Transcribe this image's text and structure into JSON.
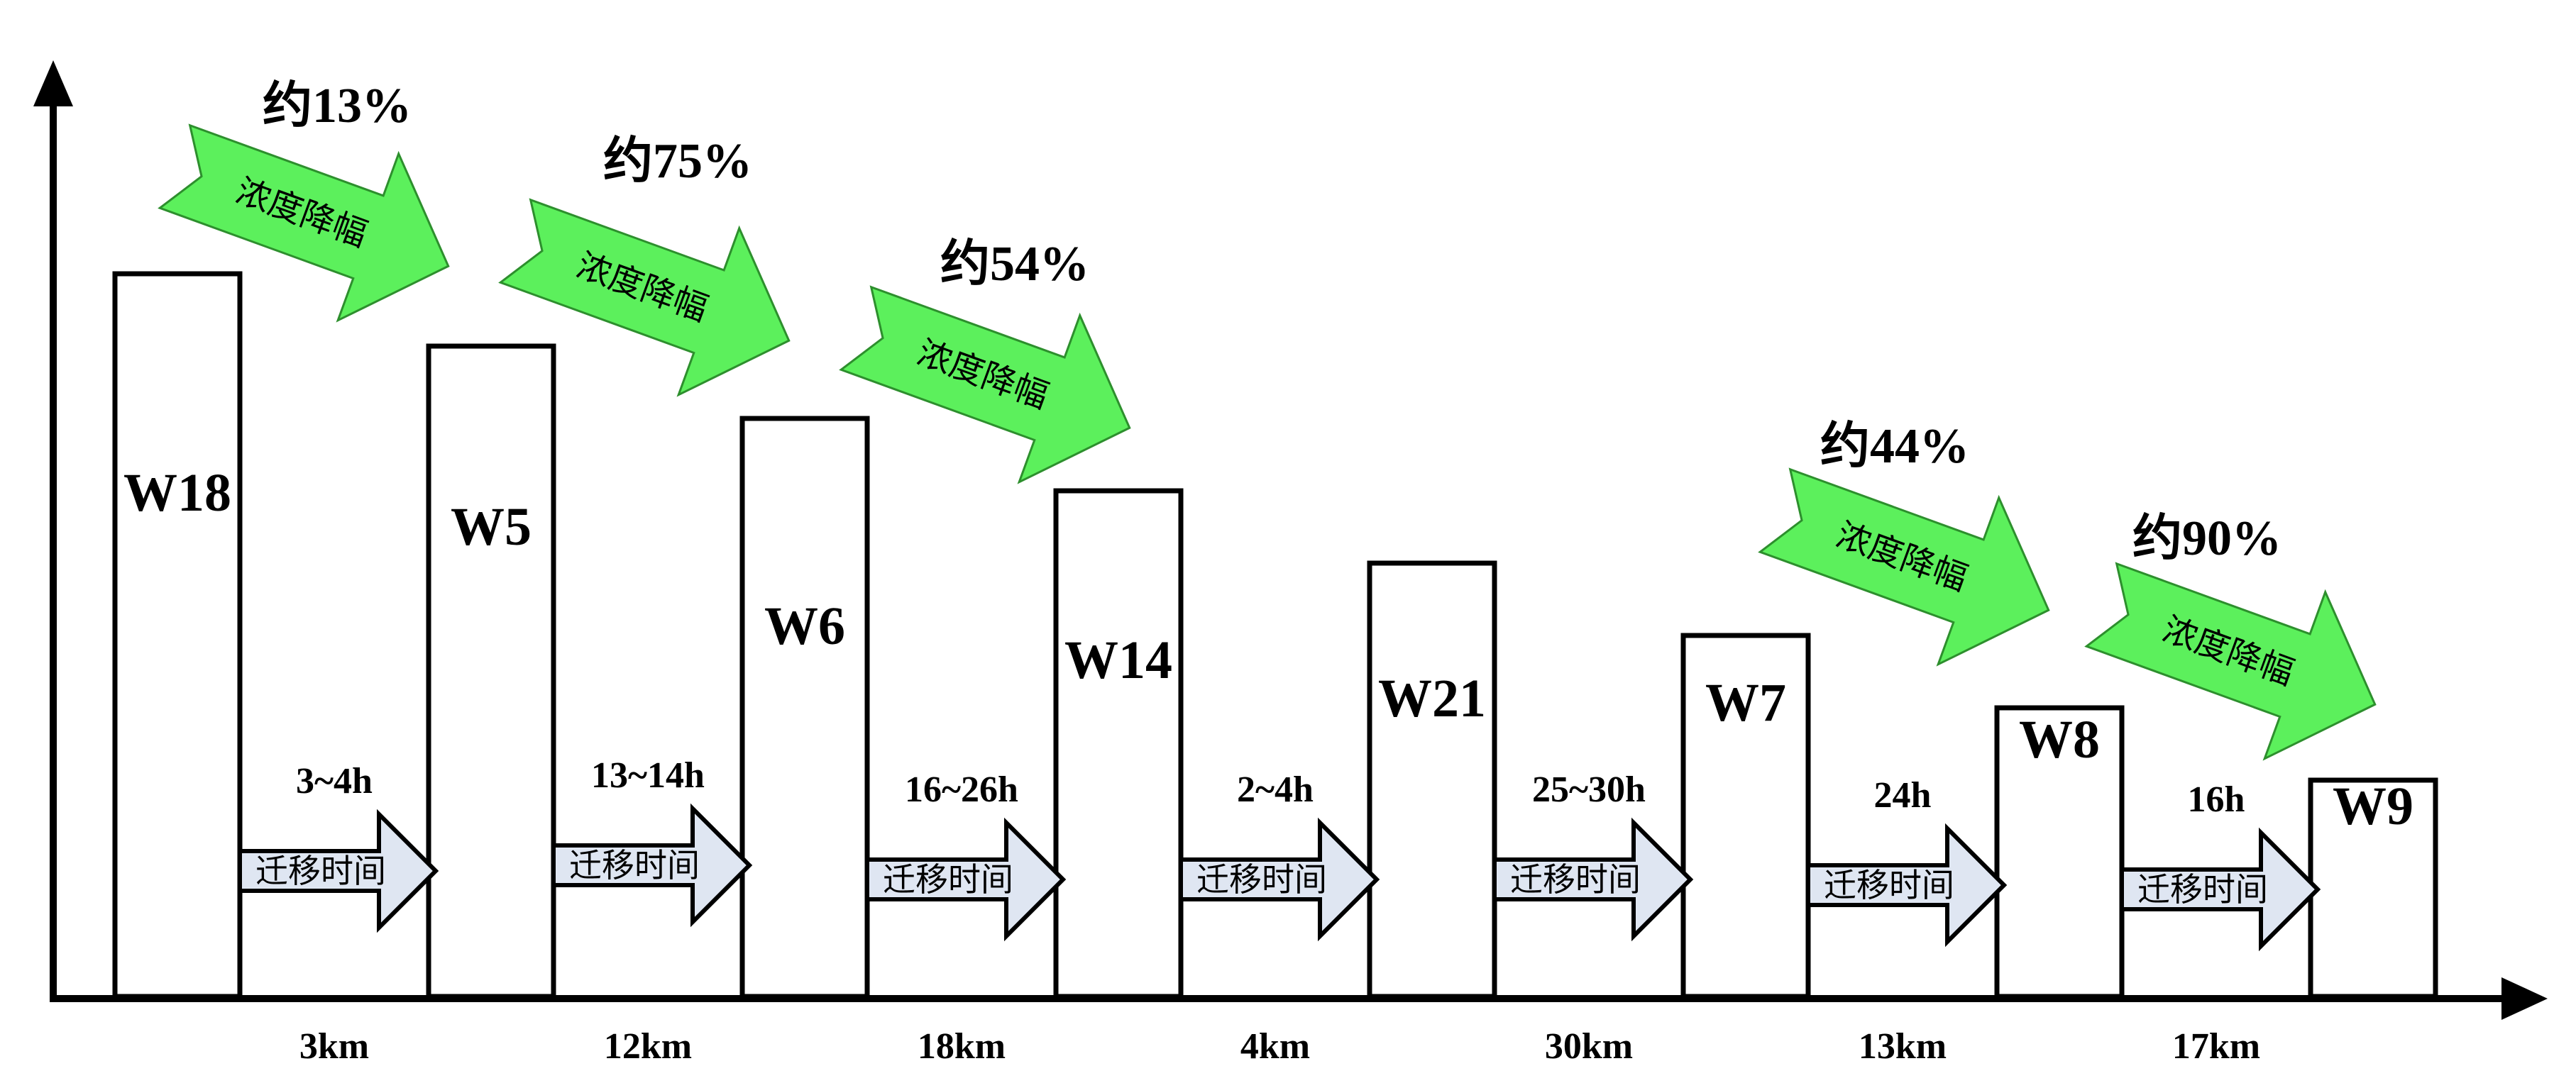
{
  "diagram": {
    "stations": [
      "W18",
      "W5",
      "W6",
      "W14",
      "W21",
      "W7",
      "W8",
      "W9"
    ],
    "segments": [
      {
        "time": "3~4h",
        "distance": "3km",
        "arrow_label": "迁移时间"
      },
      {
        "time": "13~14h",
        "distance": "12km",
        "arrow_label": "迁移时间"
      },
      {
        "time": "16~26h",
        "distance": "18km",
        "arrow_label": "迁移时间"
      },
      {
        "time": "2~4h",
        "distance": "4km",
        "arrow_label": "迁移时间"
      },
      {
        "time": "25~30h",
        "distance": "30km",
        "arrow_label": "迁移时间"
      },
      {
        "time": "24h",
        "distance": "13km",
        "arrow_label": "迁移时间"
      },
      {
        "time": "16h",
        "distance": "17km",
        "arrow_label": "迁移时间"
      }
    ],
    "reductions": [
      {
        "percent": "约13%",
        "label": "浓度降幅"
      },
      {
        "percent": "约75%",
        "label": "浓度降幅"
      },
      {
        "percent": "约54%",
        "label": "浓度降幅"
      },
      {
        "percent": "约44%",
        "label": "浓度降幅"
      },
      {
        "percent": "约90%",
        "label": "浓度降幅"
      }
    ],
    "colors": {
      "bar_fill": "#ffffff",
      "outline": "#000000",
      "green_arrow": "#5cf05c",
      "time_arrow": "#dfe6f2"
    }
  }
}
